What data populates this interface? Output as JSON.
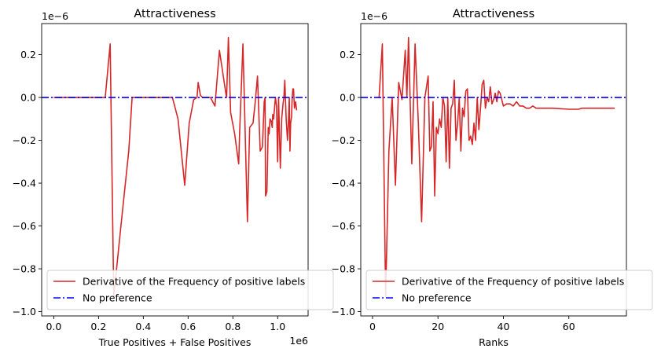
{
  "colors": {
    "series": "#d62728",
    "reference": "#0000ff",
    "axes": "#000000",
    "background": "#ffffff"
  },
  "chart_data": [
    {
      "type": "line",
      "title": "Attractiveness",
      "xlabel": "True Positives + False Positives",
      "x_offset_text": "1e6",
      "y_offset_text": "1e−6",
      "xlim": [
        -0.054,
        1.136
      ],
      "ylim": [
        -1.02,
        0.345
      ],
      "x_ticks": [
        0.0,
        0.2,
        0.4,
        0.6,
        0.8,
        1.0
      ],
      "x_tick_labels": [
        "0.0",
        "0.2",
        "0.4",
        "0.6",
        "0.8",
        "1.0"
      ],
      "y_ticks": [
        0.2,
        0.0,
        -0.2,
        -0.4,
        -0.6,
        -0.8,
        -1.0
      ],
      "y_tick_labels": [
        "0.2",
        "0.0",
        "−0.2",
        "−0.4",
        "−0.6",
        "−0.8",
        "−1.0"
      ],
      "legend": {
        "placement": "lower-left",
        "entries": [
          "Derivative of the Frequency of positive labels",
          "No preference"
        ]
      },
      "series": [
        {
          "name": "Derivative of the Frequency of positive labels",
          "x": [
            0.0,
            0.23,
            0.252,
            0.268,
            0.3,
            0.335,
            0.35,
            0.42,
            0.53,
            0.555,
            0.585,
            0.605,
            0.625,
            0.64,
            0.645,
            0.655,
            0.665,
            0.7,
            0.72,
            0.74,
            0.77,
            0.772,
            0.78,
            0.79,
            0.808,
            0.826,
            0.83,
            0.845,
            0.865,
            0.875,
            0.89,
            0.9,
            0.91,
            0.922,
            0.932,
            0.94,
            0.944,
            0.946,
            0.952,
            0.958,
            0.962,
            0.966,
            0.971,
            0.976,
            0.978,
            0.982,
            0.99,
            0.995,
            1.0,
            1.004,
            1.012,
            1.018,
            1.024,
            1.028,
            1.032,
            1.038,
            1.044,
            1.048,
            1.052,
            1.055,
            1.058,
            1.062,
            1.065,
            1.068,
            1.071,
            1.075,
            1.08,
            1.085
          ],
          "y": [
            0.0,
            0.0,
            0.25,
            -0.93,
            -0.6,
            -0.25,
            0.0,
            0.0,
            0.0,
            -0.1,
            -0.41,
            -0.12,
            -0.01,
            0.0,
            0.07,
            0.01,
            0.0,
            0.0,
            -0.04,
            0.22,
            0.01,
            0.0,
            0.28,
            -0.07,
            -0.17,
            -0.31,
            -0.17,
            0.25,
            -0.58,
            -0.14,
            -0.12,
            -0.02,
            0.1,
            -0.25,
            -0.23,
            -0.02,
            0.0,
            -0.46,
            -0.44,
            -0.14,
            -0.17,
            -0.1,
            -0.11,
            -0.14,
            -0.08,
            -0.1,
            0.0,
            -0.04,
            -0.3,
            0.0,
            -0.33,
            -0.1,
            -0.03,
            0.0,
            0.08,
            -0.1,
            -0.2,
            -0.12,
            0.0,
            -0.25,
            -0.12,
            -0.09,
            0.0,
            0.04,
            0.04,
            -0.05,
            -0.02,
            -0.06
          ]
        },
        {
          "name": "No preference",
          "y_constant": 0.0
        }
      ]
    },
    {
      "type": "line",
      "title": "Attractiveness",
      "xlabel": "Ranks",
      "y_offset_text": "1e−6",
      "xlim": [
        -3.6,
        77.6
      ],
      "ylim": [
        -1.02,
        0.345
      ],
      "x_ticks": [
        0,
        20,
        40,
        60
      ],
      "x_tick_labels": [
        "0",
        "20",
        "40",
        "60"
      ],
      "y_ticks": [
        0.2,
        0.0,
        -0.2,
        -0.4,
        -0.6,
        -0.8,
        -1.0
      ],
      "y_tick_labels": [
        "0.2",
        "0.0",
        "−0.2",
        "−0.4",
        "−0.6",
        "−0.8",
        "−1.0"
      ],
      "legend": {
        "placement": "lower-left",
        "entries": [
          "Derivative of the Frequency of positive labels",
          "No preference"
        ]
      },
      "series": [
        {
          "name": "Derivative of the Frequency of positive labels",
          "x": [
            2,
            3,
            4,
            5,
            6,
            7,
            8,
            9,
            10,
            10.5,
            11,
            12,
            13,
            14,
            15,
            16,
            17,
            17.5,
            18,
            18.5,
            19,
            19.5,
            20,
            20.5,
            21,
            21.5,
            22,
            22.5,
            23,
            23.5,
            24,
            24.5,
            25,
            25.5,
            26,
            26.5,
            27,
            27.5,
            28,
            28.5,
            29,
            29.5,
            30,
            30.5,
            31,
            31.5,
            32,
            32.5,
            33,
            33.5,
            34,
            34.5,
            35,
            35.5,
            36,
            36.5,
            37,
            37.5,
            38,
            38.5,
            39,
            40,
            41,
            42,
            43,
            44,
            45,
            46,
            47,
            48,
            49,
            50,
            51,
            52,
            55,
            60,
            63,
            64,
            70,
            74
          ],
          "y": [
            0.0,
            0.25,
            -0.93,
            -0.25,
            0.0,
            -0.41,
            0.07,
            -0.01,
            0.22,
            0.0,
            0.28,
            -0.31,
            0.25,
            -0.12,
            -0.58,
            0.0,
            0.1,
            -0.25,
            -0.23,
            -0.02,
            -0.46,
            -0.14,
            -0.17,
            -0.1,
            -0.14,
            0.0,
            -0.04,
            -0.3,
            0.0,
            -0.33,
            -0.05,
            -0.03,
            0.08,
            -0.2,
            -0.12,
            0.0,
            -0.25,
            -0.05,
            -0.09,
            0.03,
            0.04,
            -0.2,
            -0.18,
            -0.22,
            -0.12,
            -0.2,
            0.0,
            -0.15,
            -0.05,
            0.06,
            0.08,
            -0.05,
            0.0,
            -0.02,
            0.05,
            -0.03,
            -0.01,
            0.02,
            -0.02,
            0.03,
            0.02,
            -0.04,
            -0.03,
            -0.03,
            -0.04,
            -0.02,
            -0.04,
            -0.04,
            -0.05,
            -0.05,
            -0.04,
            -0.05,
            -0.05,
            -0.05,
            -0.05,
            -0.055,
            -0.055,
            -0.05,
            -0.05,
            -0.05
          ]
        },
        {
          "name": "No preference",
          "y_constant": 0.0
        }
      ]
    }
  ]
}
